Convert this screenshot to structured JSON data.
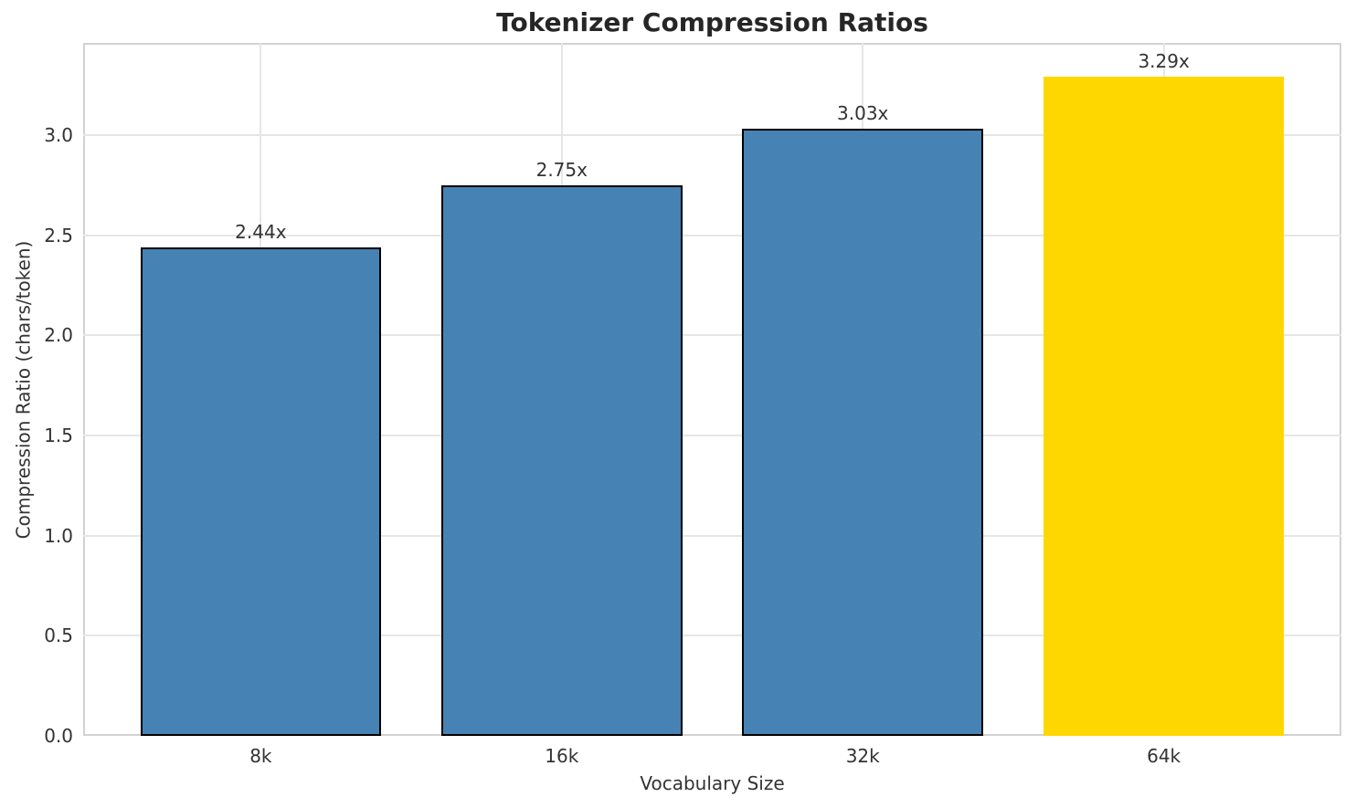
{
  "chart_data": {
    "type": "bar",
    "title": "Tokenizer Compression Ratios",
    "xlabel": "Vocabulary Size",
    "ylabel": "Compression Ratio (chars/token)",
    "categories": [
      "8k",
      "16k",
      "32k",
      "64k"
    ],
    "values": [
      2.44,
      2.75,
      3.03,
      3.29
    ],
    "value_labels": [
      "2.44x",
      "2.75x",
      "3.03x",
      "3.29x"
    ],
    "bar_colors": [
      "#4682b4",
      "#4682b4",
      "#4682b4",
      "#ffd700"
    ],
    "bar_edge_colors": [
      "#000000",
      "#000000",
      "#000000",
      null
    ],
    "ytick_labels": [
      "0.0",
      "0.5",
      "1.0",
      "1.5",
      "2.0",
      "2.5",
      "3.0"
    ],
    "ylim": [
      0,
      3.46
    ],
    "grid": true,
    "legend_position": "none"
  },
  "style": {
    "background_color": "#ffffff",
    "grid_color": "#e6e6e6",
    "frame_color": "#d2d2d2",
    "text_color": "#333333",
    "title_color": "#262626",
    "bar_color_default": "#4682b4",
    "bar_color_highlight": "#ffd700",
    "bar_edge_color": "#000000"
  }
}
